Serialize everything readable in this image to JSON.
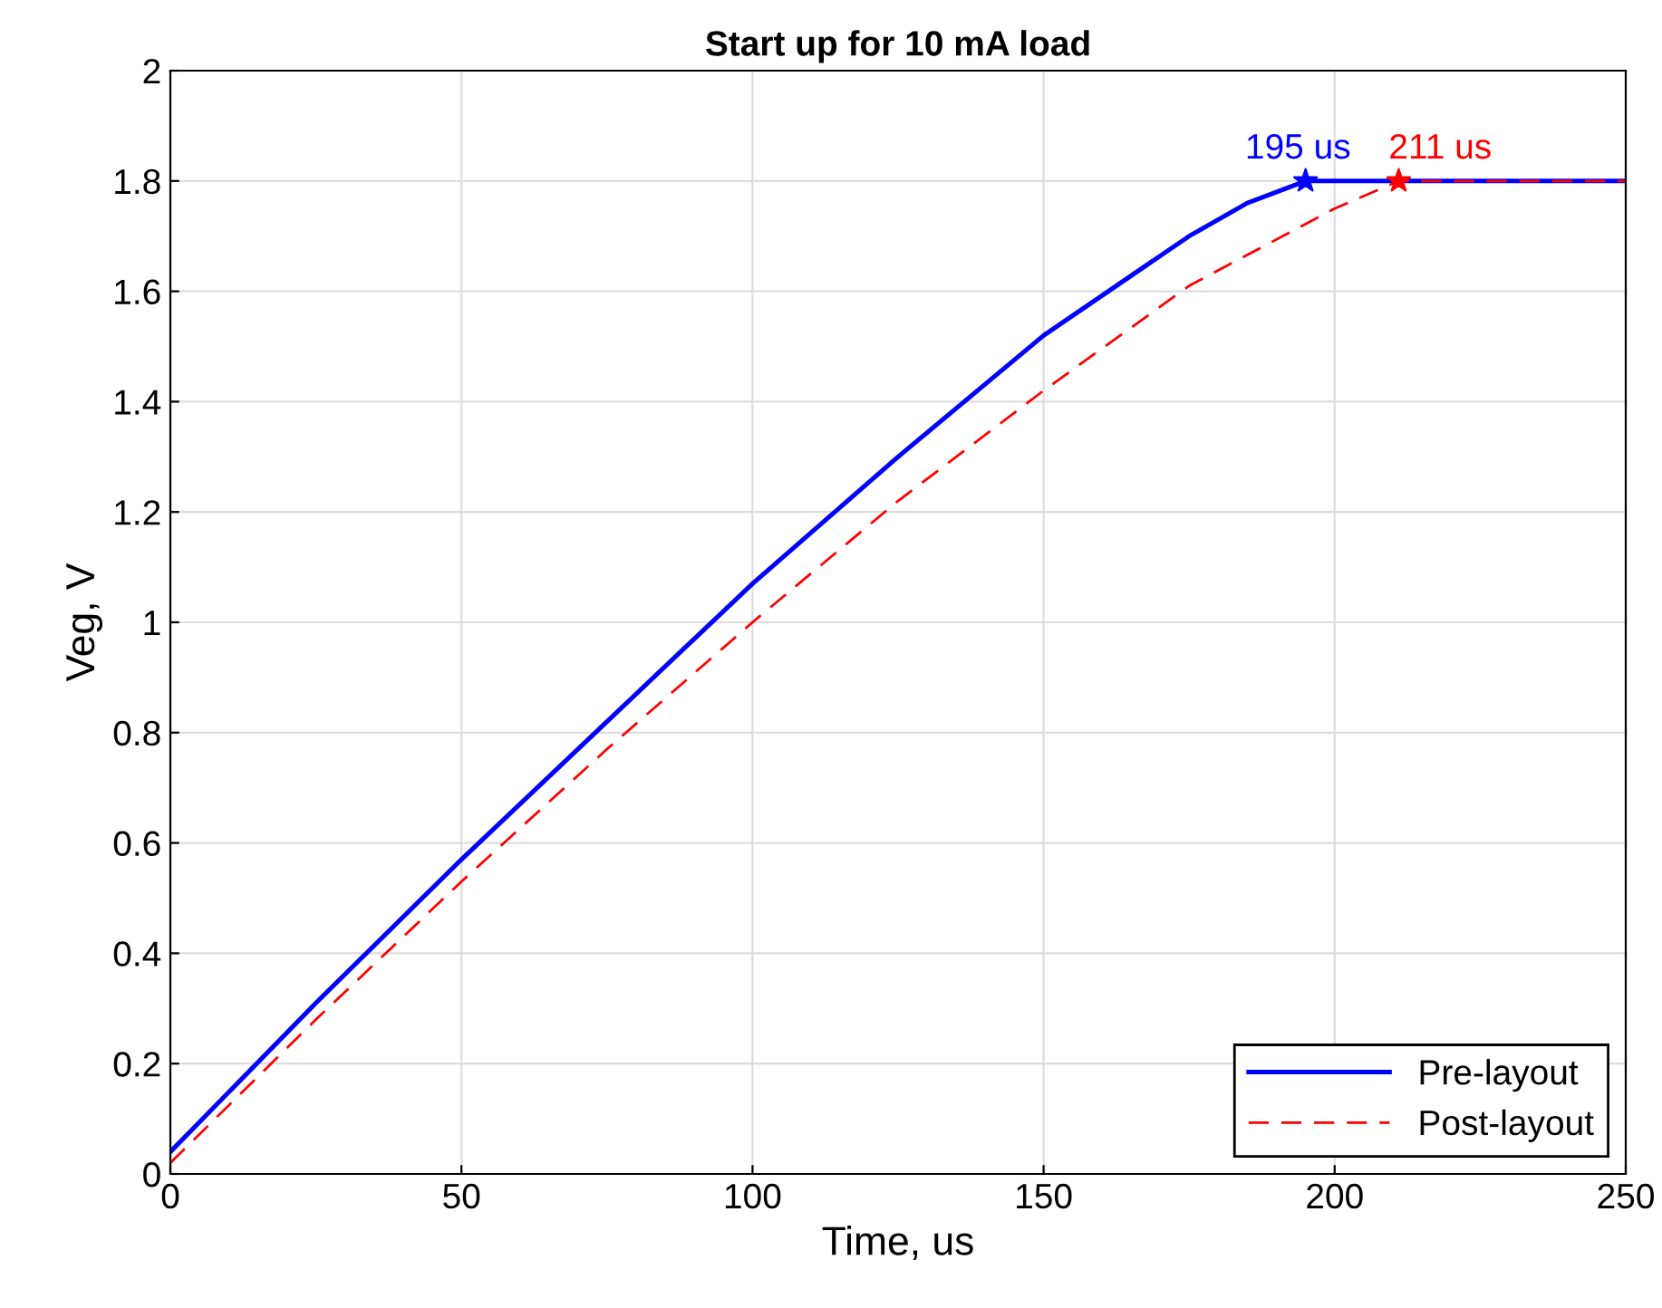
{
  "chart_data": {
    "type": "line",
    "title": "Start up for 10 mA load",
    "xlabel": "Time, us",
    "ylabel": "Veg, V",
    "xlim": [
      0,
      250
    ],
    "ylim": [
      0,
      2
    ],
    "xticks": [
      0,
      50,
      100,
      150,
      200,
      250
    ],
    "yticks": [
      0,
      0.2,
      0.4,
      0.6,
      0.8,
      1,
      1.2,
      1.4,
      1.6,
      1.8,
      2
    ],
    "grid": true,
    "legend": "bottom right",
    "marker": "none",
    "series": [
      {
        "name": "Pre-layout",
        "color": "#0000ff",
        "line_style": "solid",
        "x": [
          0,
          25,
          50,
          75,
          100,
          125,
          150,
          175,
          185,
          195,
          250
        ],
        "values": [
          0.04,
          0.31,
          0.57,
          0.82,
          1.07,
          1.3,
          1.52,
          1.7,
          1.76,
          1.8,
          1.8
        ]
      },
      {
        "name": "Post-layout",
        "color": "#ff0000",
        "line_style": "dashed",
        "x": [
          0,
          25,
          50,
          75,
          100,
          125,
          150,
          175,
          200,
          211,
          250
        ],
        "values": [
          0.02,
          0.28,
          0.53,
          0.77,
          1.0,
          1.22,
          1.42,
          1.61,
          1.75,
          1.8,
          1.8
        ]
      },
      {
        "type": "scatter",
        "marker": "star",
        "color": "#0000ff",
        "x": [
          195
        ],
        "values": [
          1.8
        ]
      },
      {
        "type": "scatter",
        "marker": "star",
        "color": "#ff0000",
        "x": [
          211
        ],
        "values": [
          1.8
        ]
      }
    ],
    "annotations": [
      {
        "text": "195 us",
        "x": 195,
        "y": 1.8
      },
      {
        "text": "211 us",
        "x": 211,
        "y": 1.8
      }
    ]
  }
}
